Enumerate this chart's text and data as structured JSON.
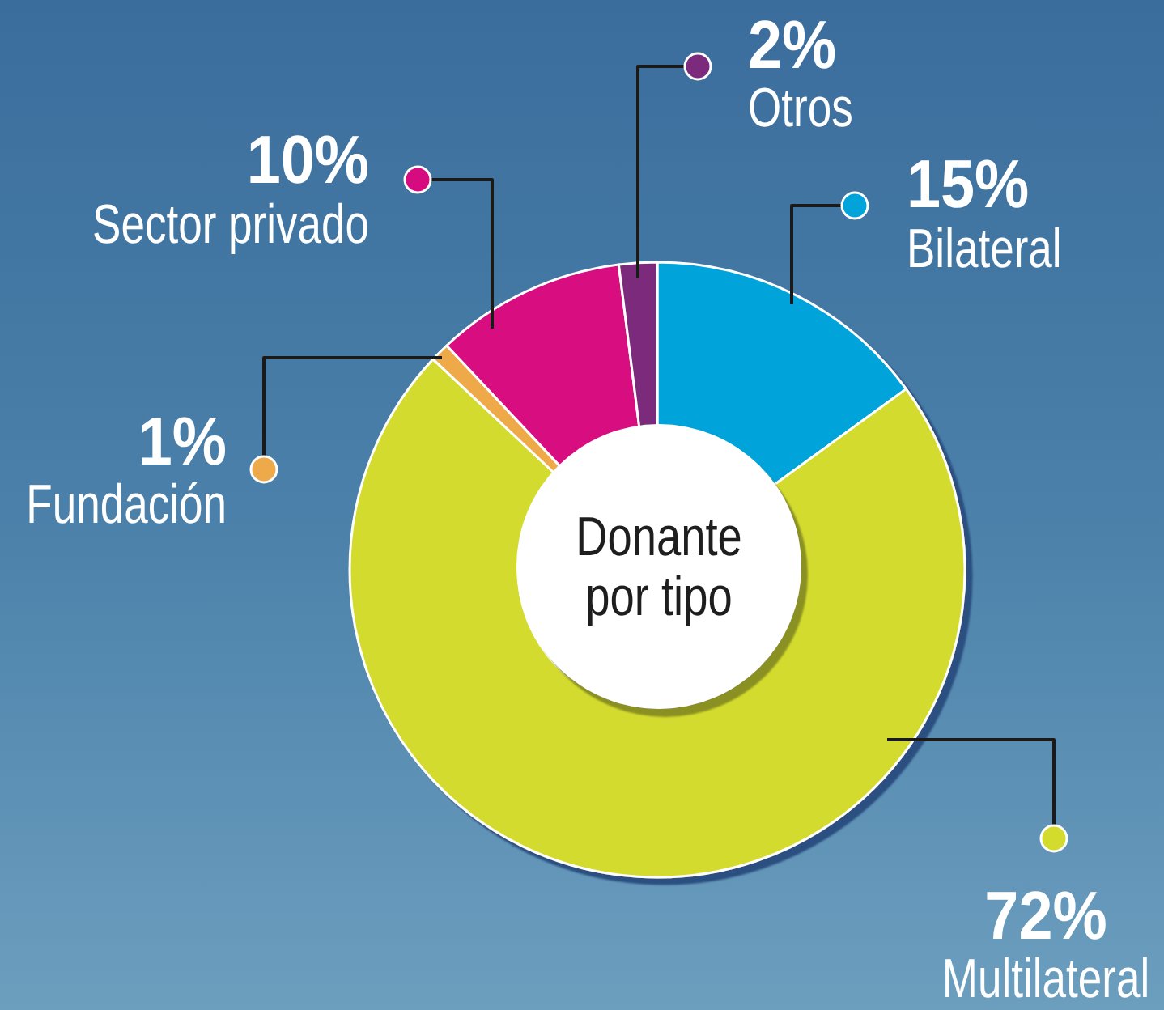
{
  "chart_data": {
    "type": "donut",
    "title": "Donante por tipo",
    "categories": [
      "Bilateral",
      "Multilateral",
      "Fundación",
      "Sector privado",
      "Otros"
    ],
    "values": [
      15,
      72,
      1,
      10,
      2
    ],
    "colors": [
      "#00a3da",
      "#d3dc2d",
      "#eeaa4a",
      "#d70b80",
      "#7c2a7b"
    ],
    "value_labels": [
      "15%",
      "72%",
      "1%",
      "10%",
      "2%"
    ]
  }
}
